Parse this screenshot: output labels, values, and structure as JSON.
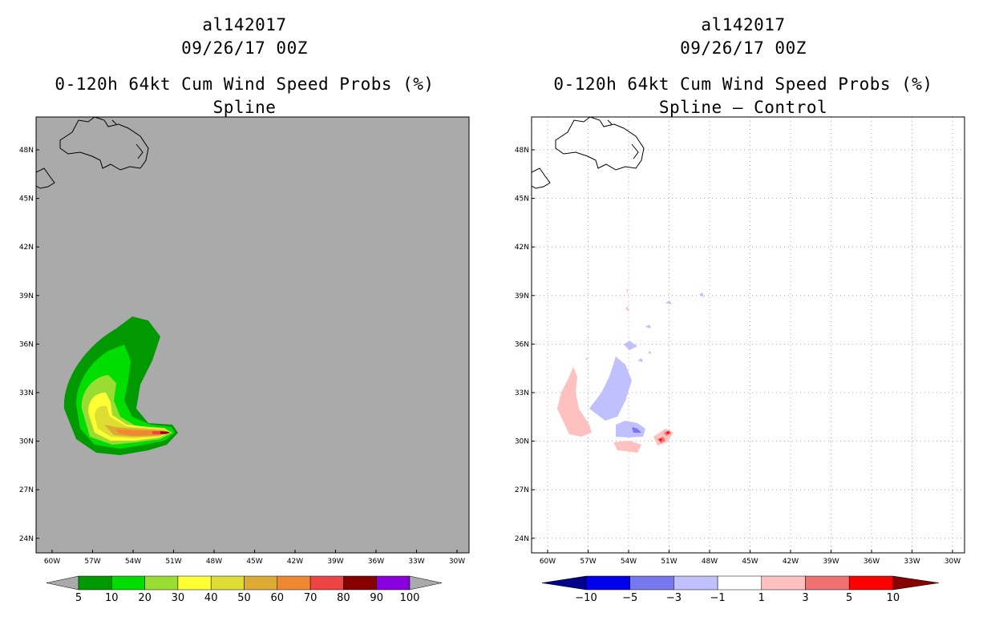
{
  "left_panel": {
    "storm_id": "al142017",
    "datetime": "09/26/17 00Z",
    "product": "0-120h 64kt Cum Wind Speed Probs (%)",
    "subtitle": "Spline",
    "background_color": "#aaaaaa",
    "colorbar": {
      "colors": [
        "#009900",
        "#00dd00",
        "#99dd33",
        "#ffff33",
        "#dddd33",
        "#ddaa33",
        "#ee8833",
        "#ee4444",
        "#880000",
        "#8800dd"
      ],
      "labels": [
        "5",
        "10",
        "20",
        "30",
        "40",
        "50",
        "60",
        "70",
        "80",
        "90",
        "100"
      ],
      "end_arrow_color": "#aaaaaa"
    }
  },
  "right_panel": {
    "storm_id": "al142017",
    "datetime": "09/26/17 00Z",
    "product": "0-120h 64kt Cum Wind Speed Probs (%)",
    "subtitle": "Spline – Control",
    "background_color": "#ffffff",
    "colorbar": {
      "colors": [
        "#0000ee",
        "#7777ee",
        "#c0c0ff",
        "#ffffff",
        "#ffc0c0",
        "#ee7070",
        "#ff0000"
      ],
      "labels": [
        "−10",
        "−5",
        "−3",
        "−1",
        "1",
        "3",
        "5",
        "10"
      ],
      "low_arrow_color": "#000088",
      "high_arrow_color": "#880000"
    }
  },
  "axes": {
    "lon_ticks": [
      "60W",
      "57W",
      "54W",
      "51W",
      "48W",
      "45W",
      "42W",
      "39W",
      "36W",
      "33W",
      "30W"
    ],
    "lat_ticks": [
      "48N",
      "45N",
      "42N",
      "39N",
      "36N",
      "33N",
      "30N",
      "27N",
      "24N"
    ]
  }
}
